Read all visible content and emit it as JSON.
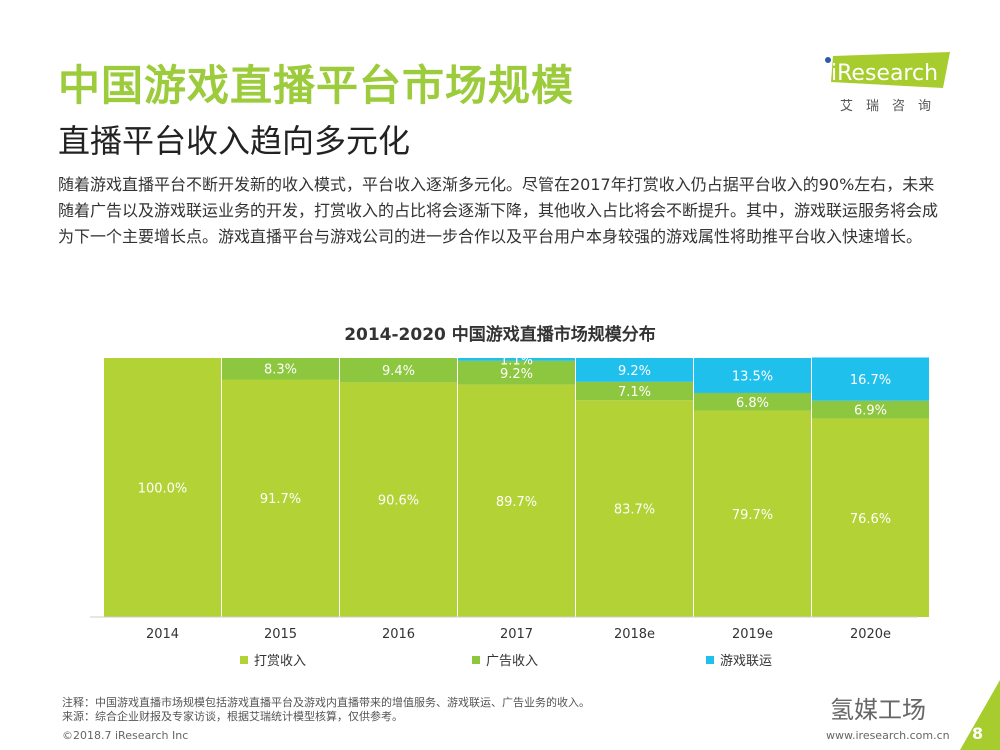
{
  "header": {
    "title": "中国游戏直播平台市场规模",
    "subtitle": "直播平台收入趋向多元化",
    "intro": "随着游戏直播平台不断开发新的收入模式，平台收入逐渐多元化。尽管在2017年打赏收入仍占据平台收入的90%左右，未来随着广告以及游戏联运业务的开发，打赏收入的占比将会逐渐下降，其他收入占比将会不断提升。其中，游戏联运服务将会成为下一个主要增长点。游戏直播平台与游戏公司的进一步合作以及平台用户本身较强的游戏属性将助推平台收入快速增长。"
  },
  "logo": {
    "text": "iResearch",
    "cn": "艾瑞咨询"
  },
  "chart_data": {
    "type": "bar",
    "stacked": true,
    "title": "2014-2020 中国游戏直播市场规模分布",
    "categories": [
      "2014",
      "2015",
      "2016",
      "2017",
      "2018e",
      "2019e",
      "2020e"
    ],
    "ylim": [
      0,
      100
    ],
    "grid": false,
    "legend_position": "bottom",
    "series": [
      {
        "name": "打赏收入",
        "color": "#b2d235",
        "values": [
          100.0,
          91.7,
          90.6,
          89.7,
          83.7,
          79.7,
          76.6
        ]
      },
      {
        "name": "广告收入",
        "color": "#8dc63f",
        "values": [
          null,
          8.3,
          9.4,
          9.2,
          7.1,
          6.8,
          6.9
        ]
      },
      {
        "name": "游戏联运",
        "color": "#1fc0ec",
        "values": [
          null,
          null,
          null,
          1.1,
          9.2,
          13.5,
          16.7
        ]
      }
    ]
  },
  "footer": {
    "note": "注释：中国游戏直播市场规模包括游戏直播平台及游戏内直播带来的增值服务、游戏联运、广告业务的收入。",
    "source": "来源：综合企业财报及专家访谈，根据艾瑞统计模型核算，仅供参考。",
    "copyright": "©2018.7 iResearch Inc",
    "url": "www.iresearch.com.cn",
    "watermark": "氢媒工场",
    "page": "8"
  }
}
